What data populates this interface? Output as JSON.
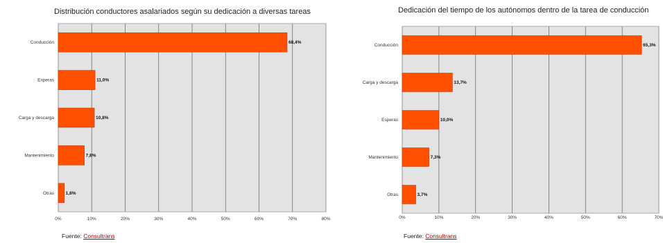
{
  "colors": {
    "bar": "#ff5000",
    "plot_bg": "#e3e3e3",
    "grid": "#6f6f6f",
    "link": "#a00000"
  },
  "charts": [
    {
      "source_label": "Fuente:",
      "source_link": "Consultrans"
    },
    {
      "source_label": "Fuente:",
      "source_link": "Consultrans"
    }
  ],
  "chart_data": [
    {
      "type": "bar",
      "orientation": "horizontal",
      "title": "Distribución conductores asalariados según su dedicación a diversas tareas",
      "categories": [
        "Conducción",
        "Esperas",
        "Carga y descarga",
        "Mantenimiento",
        "Otras"
      ],
      "values": [
        68.4,
        11.0,
        10.8,
        7.8,
        1.8
      ],
      "value_labels": [
        "68,4%",
        "11,0%",
        "10,8%",
        "7,8%",
        "1,8%"
      ],
      "xlim": [
        0,
        80
      ],
      "xticks": [
        "0%",
        "10%",
        "20%",
        "30%",
        "40%",
        "50%",
        "60%",
        "70%",
        "80%"
      ],
      "grid": true
    },
    {
      "type": "bar",
      "orientation": "horizontal",
      "title": "Dedicación del tiempo de los autónomos dentro de la tarea de conducción",
      "categories": [
        "Conducción",
        "Carga y descarga",
        "Esperas",
        "Mantenimiento",
        "Otras"
      ],
      "values": [
        65.3,
        13.7,
        10.0,
        7.3,
        3.7
      ],
      "value_labels": [
        "65,3%",
        "13,7%",
        "10,0%",
        "7,3%",
        "3,7%"
      ],
      "xlim": [
        0,
        70
      ],
      "xticks": [
        "0%",
        "10%",
        "20%",
        "30%",
        "40%",
        "50%",
        "60%",
        "70%"
      ],
      "grid": true
    }
  ]
}
